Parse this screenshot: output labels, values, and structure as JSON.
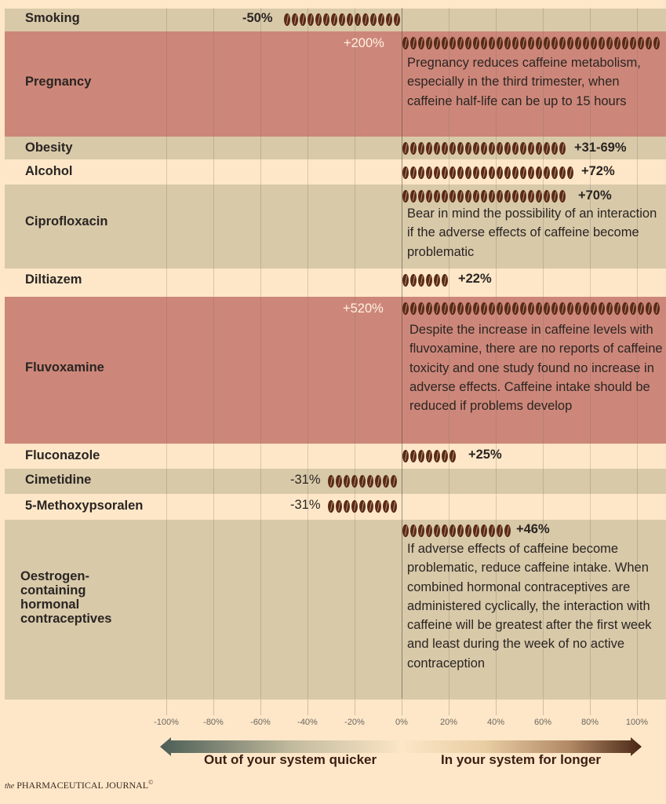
{
  "chart_data": {
    "type": "bar",
    "title": "",
    "xlabel": "",
    "ylabel": "",
    "xlim": [
      -100,
      100
    ],
    "x_ticks": [
      "-100%",
      "-80%",
      "-60%",
      "-40%",
      "-20%",
      "0%",
      "20%",
      "40%",
      "60%",
      "80%",
      "100%"
    ],
    "categories": [
      "Smoking",
      "Pregnancy",
      "Obesity",
      "Alcohol",
      "Ciprofloxacin",
      "Diltiazem",
      "Fluvoxamine",
      "Fluconazole",
      "Cimetidine",
      "5-Methoxypsoralen",
      "Oestrogen-containing hormonal contraceptives"
    ],
    "values": [
      -50,
      200,
      50,
      72,
      70,
      22,
      520,
      25,
      -31,
      -31,
      46
    ],
    "value_labels": [
      "-50%",
      "+200%",
      "+31-69%",
      "+72%",
      "+70%",
      "+22%",
      "+520%",
      "+25%",
      "-31%",
      "-31%",
      "+46%"
    ],
    "legend": {
      "negative": "Out of your system quicker",
      "positive": "In your system for longer"
    },
    "orientation": "horizontal"
  },
  "rows": [
    {
      "label": "Smoking",
      "value_label": "-50%",
      "note": ""
    },
    {
      "label": "Pregnancy",
      "value_label": "+200%",
      "note": "Pregnancy reduces caffeine metabolism, especially in the third trimester, when caffeine half-life can be up to 15 hours"
    },
    {
      "label": "Obesity",
      "value_label": "+31-69%",
      "note": ""
    },
    {
      "label": "Alcohol",
      "value_label": "+72%",
      "note": ""
    },
    {
      "label": "Ciprofloxacin",
      "value_label": "+70%",
      "note": "Bear in mind the possibility of an interaction if the adverse effects of caffeine become problematic"
    },
    {
      "label": "Diltiazem",
      "value_label": "+22%",
      "note": ""
    },
    {
      "label": "Fluvoxamine",
      "value_label": "+520%",
      "note": "Despite the increase in caffeine levels with fluvoxamine, there are no reports of caffeine toxicity and one study found no increase in adverse effects. Caffeine intake should be reduced if problems develop"
    },
    {
      "label": "Fluconazole",
      "value_label": "+25%",
      "note": ""
    },
    {
      "label": "Cimetidine",
      "value_label": "-31%",
      "note": ""
    },
    {
      "label": "5-Methoxypsoralen",
      "value_label": "-31%",
      "note": ""
    },
    {
      "label": "Oestrogen-containing hormonal contraceptives",
      "value_label": "+46%",
      "note": "If adverse effects of caffeine become problematic, reduce caffeine intake. When combined hormonal contraceptives are administered cyclically, the interaction with caffeine will be greatest after the first week and least during the week of no active contraception"
    }
  ],
  "axis": {
    "ticks": [
      "-100%",
      "-80%",
      "-60%",
      "-40%",
      "-20%",
      "0%",
      "20%",
      "40%",
      "60%",
      "80%",
      "100%"
    ]
  },
  "legend": {
    "left": "Out of your system quicker",
    "right": "In your system for longer"
  },
  "footer": {
    "prefix": "the",
    "brand": "PHARMACEUTICAL JOURNAL",
    "mark": "©"
  },
  "colors": {
    "background": "#fde7c8",
    "row_tan": "#d8c9a9",
    "row_highlight": "#cd877a",
    "bean": "#5a2a16",
    "arrow_left": "#4b5d55",
    "arrow_right": "#4a2615"
  },
  "icons": {
    "bar_unit": "coffee-bean-icon"
  }
}
